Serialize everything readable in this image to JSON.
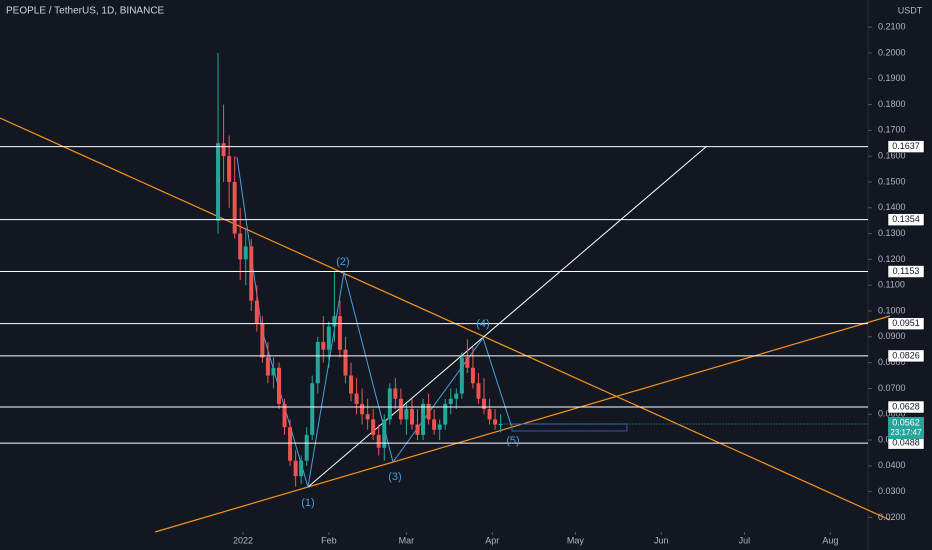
{
  "chart_data": {
    "type": "candlestick",
    "title": "PEOPLE / TetherUS, 1D, BINANCE",
    "unit": "USDT",
    "x": [
      -9,
      -7,
      -5,
      -3,
      -1,
      1,
      3,
      5,
      7,
      9,
      11,
      13,
      15,
      17,
      19,
      21,
      23,
      25,
      27,
      29,
      31,
      33,
      35,
      37,
      39,
      41,
      43,
      45,
      47,
      49,
      51,
      53,
      55,
      57,
      59,
      61,
      63,
      65,
      67,
      69,
      71,
      73,
      75,
      77,
      79,
      81,
      83,
      85,
      87,
      89,
      91,
      93
    ],
    "open": [
      0.135,
      0.165,
      0.16,
      0.15,
      0.13,
      0.12,
      0.125,
      0.104,
      0.095,
      0.082,
      0.075,
      0.078,
      0.064,
      0.055,
      0.042,
      0.036,
      0.042,
      0.052,
      0.072,
      0.088,
      0.085,
      0.094,
      0.098,
      0.085,
      0.075,
      0.068,
      0.064,
      0.06,
      0.058,
      0.052,
      0.047,
      0.058,
      0.07,
      0.066,
      0.058,
      0.062,
      0.056,
      0.052,
      0.064,
      0.058,
      0.054,
      0.056,
      0.064,
      0.066,
      0.068,
      0.082,
      0.078,
      0.072,
      0.066,
      0.062,
      0.058,
      0.056
    ],
    "high": [
      0.2,
      0.18,
      0.168,
      0.16,
      0.14,
      0.132,
      0.128,
      0.11,
      0.098,
      0.088,
      0.082,
      0.08,
      0.066,
      0.058,
      0.046,
      0.044,
      0.055,
      0.075,
      0.09,
      0.098,
      0.096,
      0.115,
      0.104,
      0.09,
      0.08,
      0.074,
      0.07,
      0.066,
      0.062,
      0.056,
      0.06,
      0.072,
      0.074,
      0.07,
      0.064,
      0.066,
      0.062,
      0.066,
      0.068,
      0.062,
      0.058,
      0.066,
      0.07,
      0.07,
      0.084,
      0.089,
      0.086,
      0.076,
      0.074,
      0.066,
      0.062,
      0.06
    ],
    "low": [
      0.13,
      0.15,
      0.14,
      0.128,
      0.112,
      0.11,
      0.1,
      0.092,
      0.08,
      0.072,
      0.07,
      0.062,
      0.052,
      0.04,
      0.032,
      0.033,
      0.04,
      0.05,
      0.068,
      0.08,
      0.078,
      0.088,
      0.082,
      0.072,
      0.065,
      0.06,
      0.056,
      0.054,
      0.05,
      0.044,
      0.042,
      0.056,
      0.062,
      0.056,
      0.052,
      0.054,
      0.05,
      0.05,
      0.056,
      0.052,
      0.05,
      0.054,
      0.06,
      0.062,
      0.066,
      0.076,
      0.07,
      0.064,
      0.06,
      0.056,
      0.054,
      0.053
    ],
    "close": [
      0.165,
      0.16,
      0.15,
      0.13,
      0.12,
      0.125,
      0.104,
      0.095,
      0.082,
      0.075,
      0.078,
      0.064,
      0.055,
      0.042,
      0.036,
      0.042,
      0.052,
      0.072,
      0.088,
      0.085,
      0.094,
      0.098,
      0.085,
      0.075,
      0.068,
      0.064,
      0.06,
      0.058,
      0.052,
      0.047,
      0.058,
      0.07,
      0.066,
      0.058,
      0.062,
      0.056,
      0.052,
      0.064,
      0.058,
      0.054,
      0.056,
      0.064,
      0.066,
      0.068,
      0.082,
      0.078,
      0.072,
      0.066,
      0.062,
      0.058,
      0.056,
      0.0562
    ],
    "up_color": "#26a69a",
    "down_color": "#ef5350",
    "xlim": [
      -87.7,
      225.6
    ],
    "ylim": [
      0.0074,
      0.2205
    ],
    "xticks": [
      {
        "value": 0,
        "label": "2022"
      },
      {
        "value": 31,
        "label": "Feb"
      },
      {
        "value": 59,
        "label": "Mar"
      },
      {
        "value": 90,
        "label": "Apr"
      },
      {
        "value": 120,
        "label": "May"
      },
      {
        "value": 151,
        "label": "Jun"
      },
      {
        "value": 181,
        "label": "Jul"
      },
      {
        "value": 212,
        "label": "Aug"
      }
    ],
    "yticks": [
      {
        "value": 0.02,
        "label": "0.0200"
      },
      {
        "value": 0.03,
        "label": "0.0300"
      },
      {
        "value": 0.04,
        "label": "0.0400"
      },
      {
        "value": 0.05,
        "label": "0.0500"
      },
      {
        "value": 0.06,
        "label": "0.0600"
      },
      {
        "value": 0.07,
        "label": "0.0700"
      },
      {
        "value": 0.08,
        "label": "0.0800"
      },
      {
        "value": 0.09,
        "label": "0.0900"
      },
      {
        "value": 0.1,
        "label": "0.1000"
      },
      {
        "value": 0.11,
        "label": "0.1100"
      },
      {
        "value": 0.12,
        "label": "0.1200"
      },
      {
        "value": 0.13,
        "label": "0.1300"
      },
      {
        "value": 0.14,
        "label": "0.1400"
      },
      {
        "value": 0.15,
        "label": "0.1500"
      },
      {
        "value": 0.16,
        "label": "0.1600"
      },
      {
        "value": 0.17,
        "label": "0.1700"
      },
      {
        "value": 0.18,
        "label": "0.1800"
      },
      {
        "value": 0.19,
        "label": "0.1900"
      },
      {
        "value": 0.2,
        "label": "0.2000"
      },
      {
        "value": 0.21,
        "label": "0.2100"
      }
    ],
    "levels": [
      0.1637,
      0.1354,
      0.1153,
      0.0951,
      0.0826,
      0.0628,
      0.0488
    ],
    "last_price": 0.0562,
    "countdown": "23:17:47",
    "wave_labels": [
      "(1)",
      "(2)",
      "(3)",
      "(4)",
      "(5)"
    ],
    "grid": false
  }
}
